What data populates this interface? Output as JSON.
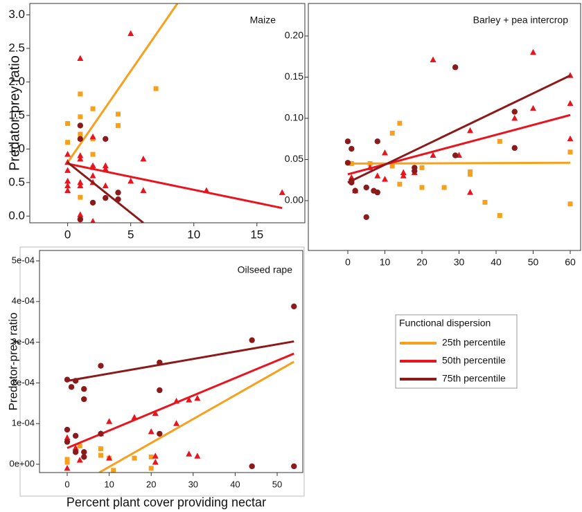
{
  "chart_data": [
    {
      "type": "scatter",
      "title": "Maize",
      "ylabel": "Predator-prey ratio",
      "xlim": [
        -3,
        18.8
      ],
      "ylim": [
        -0.1,
        3.17
      ],
      "xticks": [
        0,
        5,
        10,
        15
      ],
      "yticks": [
        {
          "value": 0,
          "label": "0.0"
        },
        0.5,
        {
          "value": 1,
          "label": "1.0"
        },
        1.5,
        {
          "value": 2,
          "label": "2.0"
        },
        2.5,
        {
          "value": 3,
          "label": "3.0"
        }
      ],
      "series": [
        {
          "color": "#f7a01c",
          "marker": "square",
          "x": [
            0,
            0,
            1,
            1,
            1,
            1,
            2,
            2,
            2,
            2,
            4,
            4,
            7
          ],
          "values": [
            1.38,
            1.1,
            1.82,
            1.48,
            1.22,
            0.28,
            1.6,
            1.15,
            0.92,
            0.72,
            1.52,
            1.35,
            1.9
          ],
          "fit": {
            "x": [
              0,
              8.7
            ],
            "values": [
              0.8,
              3.17
            ]
          }
        },
        {
          "color": "#e8141e",
          "marker": "triangle",
          "x": [
            0,
            0,
            0,
            0,
            0,
            0,
            1,
            1,
            1,
            1,
            1,
            1,
            2,
            2,
            2,
            2,
            2,
            3,
            3,
            3,
            5,
            5,
            6,
            6,
            11,
            17
          ],
          "values": [
            0.92,
            0.8,
            0.68,
            0.52,
            0.45,
            0.38,
            2.35,
            0.9,
            0.85,
            0.5,
            0.45,
            0.02,
            1.18,
            0.75,
            0.6,
            0.5,
            -0.08,
            0.75,
            0.7,
            0.45,
            2.72,
            0.52,
            0.85,
            0.38,
            0.38,
            0.35
          ],
          "fit": {
            "x": [
              0,
              17
            ],
            "values": [
              0.78,
              0.12
            ]
          }
        },
        {
          "color": "#8b1a1a",
          "marker": "circle",
          "x": [
            1,
            1,
            1,
            2,
            3,
            3,
            4,
            4
          ],
          "values": [
            1.35,
            1.15,
            -0.05,
            0.2,
            1.15,
            0.27,
            0.35,
            0.25
          ],
          "fit": {
            "x": [
              0,
              6
            ],
            "values": [
              0.8,
              -0.1
            ]
          }
        }
      ]
    },
    {
      "type": "scatter",
      "title": "Barley + pea intercrop",
      "xlim": [
        -10.65,
        62.8
      ],
      "ylim": [
        -0.0605,
        0.2395
      ],
      "xticks": [
        0,
        10,
        20,
        30,
        40,
        50,
        60
      ],
      "yticks": [
        {
          "value": 0,
          "label": "0.00"
        },
        {
          "value": 0.05,
          "label": "0.05"
        },
        {
          "value": 0.1,
          "label": "0.10"
        },
        {
          "value": 0.15,
          "label": "0.15"
        },
        {
          "value": 0.2,
          "label": "0.20"
        }
      ],
      "series": [
        {
          "color": "#f7a01c",
          "marker": "square",
          "x": [
            1,
            6,
            12,
            12,
            14,
            14,
            20,
            20,
            26,
            33,
            33,
            37,
            41,
            41,
            60,
            60
          ],
          "values": [
            0.045,
            0.045,
            0.082,
            0.042,
            0.094,
            0.02,
            0.04,
            0.016,
            0.016,
            0.035,
            0.032,
            -0.002,
            0.072,
            -0.018,
            0.059,
            -0.004
          ],
          "fit": {
            "x": [
              0,
              60
            ],
            "values": [
              0.045,
              0.046
            ]
          }
        },
        {
          "color": "#e8141e",
          "marker": "triangle",
          "x": [
            1,
            2,
            6,
            8,
            10,
            10,
            15,
            15,
            18,
            23,
            23,
            30,
            33,
            33,
            45,
            50,
            50,
            60,
            60,
            60
          ],
          "values": [
            0.028,
            0.012,
            0.04,
            0.03,
            0.058,
            0.026,
            0.034,
            0.03,
            0.034,
            0.171,
            0.055,
            0.055,
            0.085,
            0.01,
            0.1,
            0.18,
            0.112,
            0.152,
            0.118,
            0.075
          ],
          "fit": {
            "x": [
              0,
              60
            ],
            "values": [
              0.032,
              0.104
            ]
          }
        },
        {
          "color": "#8b1a1a",
          "marker": "circle",
          "x": [
            0,
            0,
            1,
            1,
            1,
            2,
            5,
            5,
            7,
            8,
            8,
            18,
            18,
            29,
            29,
            45,
            45
          ],
          "values": [
            0.072,
            0.046,
            0.063,
            0.024,
            0.022,
            0.012,
            0.016,
            -0.02,
            0.012,
            0.01,
            0.072,
            0.04,
            0.036,
            0.162,
            0.055,
            0.108,
            0.064
          ],
          "fit": {
            "x": [
              0,
              60
            ],
            "values": [
              0.022,
              0.152
            ]
          }
        }
      ]
    },
    {
      "type": "scatter",
      "title": "Oilseed rape",
      "ylabel": "Predator-prey ratio",
      "xlabel": "Percent plant cover providing nectar",
      "xlim": [
        -6.6,
        56.1
      ],
      "ylim": [
        -2.04e-05,
        0.0005255
      ],
      "xticks": [
        0,
        10,
        20,
        30,
        40,
        50
      ],
      "yticks": [
        {
          "value": 0,
          "label": "0e+00"
        },
        {
          "value": 0.0001,
          "label": "1e-04"
        },
        {
          "value": 0.0002,
          "label": "2e-04"
        },
        {
          "value": 0.0003,
          "label": "3e-04"
        },
        {
          "value": 0.0004,
          "label": "4e-04"
        },
        {
          "value": 0.0005,
          "label": "5e-04"
        }
      ],
      "series": [
        {
          "color": "#f7a01c",
          "marker": "square",
          "x": [
            0,
            0,
            3,
            8,
            8,
            10,
            11,
            16,
            20,
            20
          ],
          "values": [
            1.2e-05,
            5e-06,
            4.5e-05,
            3.8e-05,
            2.2e-05,
            1.5e-05,
            -1.5e-05,
            1.5e-05,
            1.8e-05,
            -1e-05
          ],
          "fit": {
            "x": [
              7.6,
              54
            ],
            "values": [
              -2.04e-05,
              0.000252
            ]
          }
        },
        {
          "color": "#e8141e",
          "marker": "triangle",
          "x": [
            0,
            0,
            2,
            3,
            8,
            10,
            10,
            16,
            20,
            21,
            21,
            21,
            26,
            26,
            29,
            29,
            31,
            31
          ],
          "values": [
            6.5e-05,
            -1e-05,
            4e-05,
            1e-05,
            7.5e-05,
            0.000105,
            1.5e-05,
            0.000115,
            8e-05,
            0.000125,
            2e-05,
            5e-06,
            0.0001,
            0.000155,
            0.000158,
            2.5e-05,
            0.000162,
            2e-05
          ],
          "fit": {
            "x": [
              0,
              54
            ],
            "values": [
              4e-05,
              0.000272
            ]
          }
        },
        {
          "color": "#8b1a1a",
          "marker": "circle",
          "x": [
            0,
            0,
            0,
            1,
            2,
            2,
            2,
            4,
            4,
            4,
            4,
            8,
            8,
            22,
            22,
            22,
            44,
            44,
            54,
            54
          ],
          "values": [
            0.000208,
            8.5e-05,
            5.5e-05,
            0.00019,
            0.000205,
            7e-05,
            3e-05,
            0.000185,
            0.00016,
            3e-05,
            1.8e-05,
            0.000242,
            7.5e-05,
            0.00025,
            0.000182,
            7.5e-05,
            0.000305,
            -5e-06,
            0.000388,
            -5e-06
          ],
          "fit": {
            "x": [
              0,
              54
            ],
            "values": [
              0.000205,
              0.000302
            ]
          }
        }
      ]
    }
  ],
  "legend": {
    "title": "Functional dispersion",
    "entries": [
      {
        "name": "25th percentile",
        "color": "#f7a01c"
      },
      {
        "name": "50th percentile",
        "color": "#e8141e"
      },
      {
        "name": "75th percentile",
        "color": "#8b1a1a"
      }
    ]
  }
}
